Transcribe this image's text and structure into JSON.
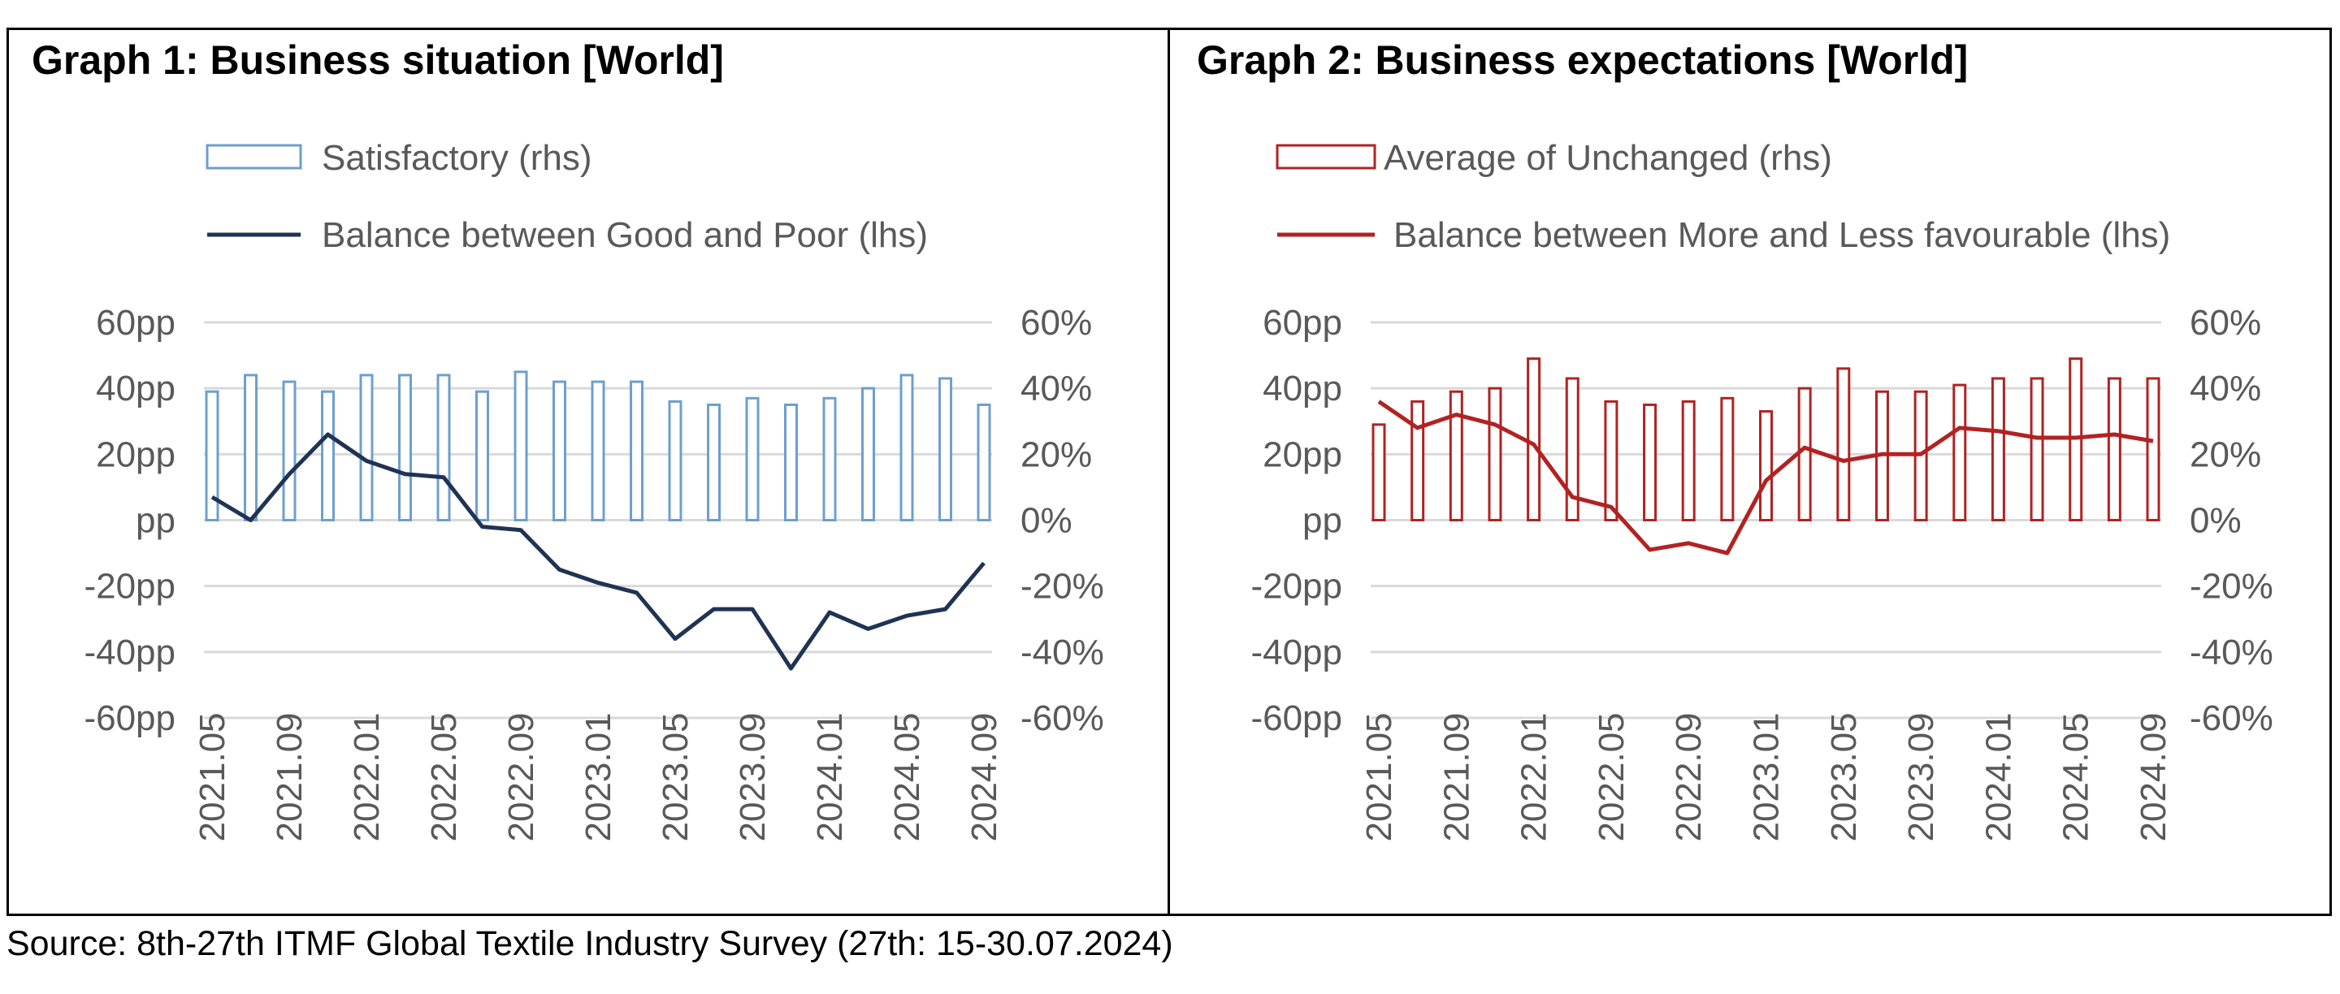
{
  "chart_data": [
    {
      "type": "bar",
      "title": "Graph 1: Business situation [World]",
      "categories": [
        "2021.05",
        "2021.07",
        "2021.09",
        "2021.11",
        "2022.01",
        "2022.03",
        "2022.05",
        "2022.07",
        "2022.09",
        "2022.11",
        "2023.01",
        "2023.03",
        "2023.05",
        "2023.07",
        "2023.09",
        "2023.11",
        "2024.01",
        "2024.03",
        "2024.05",
        "2024.07",
        "2024.09"
      ],
      "x_tick_labels": [
        "2021.05",
        "2021.09",
        "2022.01",
        "2022.05",
        "2022.09",
        "2023.01",
        "2023.05",
        "2023.09",
        "2024.01",
        "2024.05",
        "2024.09"
      ],
      "y_left_ticks": [
        "60pp",
        "40pp",
        "20pp",
        "pp",
        "-20pp",
        "-40pp",
        "-60pp"
      ],
      "y_right_ticks": [
        "60%",
        "40%",
        "20%",
        "0%",
        "-20%",
        "-40%",
        "-60%"
      ],
      "ylim": [
        -60,
        60
      ],
      "grid": true,
      "legend_position": "top",
      "series": [
        {
          "name": "Satisfactory (rhs)",
          "kind": "bar",
          "axis": "right",
          "color": "#6d9fcf",
          "values": [
            39,
            44,
            42,
            39,
            44,
            44,
            44,
            39,
            45,
            42,
            42,
            42,
            36,
            35,
            37,
            35,
            37,
            40,
            44,
            43,
            35
          ]
        },
        {
          "name": "Balance between Good and Poor (lhs)",
          "kind": "line",
          "axis": "left",
          "color": "#1f3354",
          "values": [
            7,
            0,
            14,
            26,
            18,
            14,
            13,
            -2,
            -3,
            -15,
            -19,
            -22,
            -36,
            -27,
            -27,
            -45,
            -28,
            -33,
            -29,
            -27,
            -13
          ]
        }
      ]
    },
    {
      "type": "bar",
      "title": "Graph 2: Business expectations [World]",
      "categories": [
        "2021.05",
        "2021.07",
        "2021.09",
        "2021.11",
        "2022.01",
        "2022.03",
        "2022.05",
        "2022.07",
        "2022.09",
        "2022.11",
        "2023.01",
        "2023.03",
        "2023.05",
        "2023.07",
        "2023.09",
        "2023.11",
        "2024.01",
        "2024.03",
        "2024.05",
        "2024.07",
        "2024.09"
      ],
      "x_tick_labels": [
        "2021.05",
        "2021.09",
        "2022.01",
        "2022.05",
        "2022.09",
        "2023.01",
        "2023.05",
        "2023.09",
        "2024.01",
        "2024.05",
        "2024.09"
      ],
      "y_left_ticks": [
        "60pp",
        "40pp",
        "20pp",
        "pp",
        "-20pp",
        "-40pp",
        "-60pp"
      ],
      "y_right_ticks": [
        "60%",
        "40%",
        "20%",
        "0%",
        "-20%",
        "-40%",
        "-60%"
      ],
      "ylim": [
        -60,
        60
      ],
      "grid": true,
      "legend_position": "top",
      "series": [
        {
          "name": "Average of Unchanged (rhs)",
          "kind": "bar",
          "axis": "right",
          "color": "#b22222",
          "values": [
            29,
            36,
            39,
            40,
            49,
            43,
            36,
            35,
            36,
            37,
            33,
            40,
            46,
            39,
            39,
            41,
            43,
            43,
            49,
            43,
            43
          ]
        },
        {
          "name": "Balance between More and Less favourable (lhs)",
          "kind": "line",
          "axis": "left",
          "color": "#b22222",
          "values": [
            36,
            28,
            32,
            29,
            23,
            7,
            4,
            -9,
            -7,
            -10,
            12,
            22,
            18,
            20,
            20,
            28,
            27,
            25,
            25,
            26,
            24
          ]
        }
      ]
    }
  ],
  "source": "Source: 8th-27th ITMF Global Textile Industry Survey (27th: 15-30.07.2024)"
}
